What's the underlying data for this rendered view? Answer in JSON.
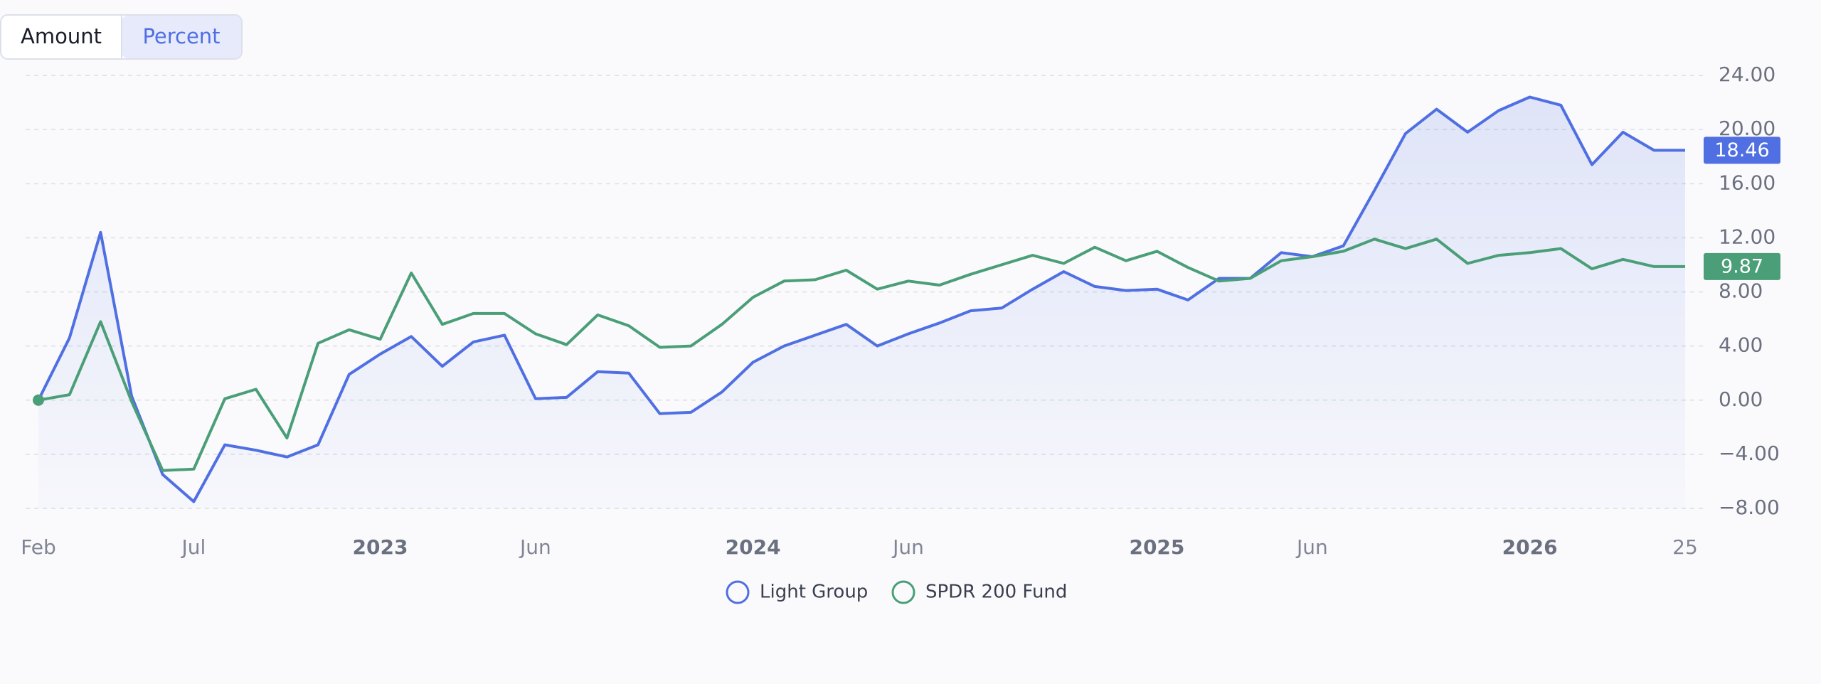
{
  "ui": {
    "buttons": [
      "Amount",
      "Percent"
    ],
    "active_button": 1
  },
  "chart_data": {
    "type": "line",
    "categories": [
      "Feb",
      null,
      null,
      null,
      null,
      "Jul",
      null,
      null,
      null,
      null,
      null,
      "2023",
      null,
      null,
      null,
      null,
      "Jun",
      null,
      null,
      null,
      null,
      null,
      null,
      "2024",
      null,
      null,
      null,
      null,
      "Jun",
      null,
      null,
      null,
      null,
      null,
      null,
      null,
      "2025",
      null,
      null,
      null,
      null,
      "Jun",
      null,
      null,
      null,
      null,
      null,
      null,
      "2026",
      null,
      null,
      null,
      null,
      "25"
    ],
    "series": [
      {
        "name": "Light Group",
        "color": "#4f6fe3",
        "area": true,
        "values": [
          0,
          4.6,
          12.4,
          0.3,
          -5.5,
          -7.5,
          -3.3,
          -3.7,
          -4.2,
          -3.3,
          1.9,
          3.4,
          4.7,
          2.5,
          4.3,
          4.8,
          0.1,
          0.2,
          2.1,
          2.0,
          -1.0,
          -0.9,
          0.6,
          2.8,
          4.0,
          4.8,
          5.6,
          4.0,
          4.9,
          5.7,
          6.6,
          6.8,
          8.2,
          9.5,
          8.4,
          8.1,
          8.2,
          7.4,
          9.0,
          9.0,
          10.9,
          10.6,
          11.4,
          15.5,
          19.7,
          21.5,
          19.8,
          21.4,
          22.4,
          21.8,
          17.4,
          19.8,
          18.46,
          18.46
        ]
      },
      {
        "name": "SPDR 200 Fund",
        "color": "#4a9e78",
        "area": false,
        "values": [
          0,
          0.4,
          5.8,
          -0.1,
          -5.2,
          -5.1,
          0.1,
          0.8,
          -2.8,
          4.2,
          5.2,
          4.5,
          9.4,
          5.6,
          6.4,
          6.4,
          4.9,
          4.1,
          6.3,
          5.5,
          3.9,
          4.0,
          5.6,
          7.6,
          8.8,
          8.9,
          9.6,
          8.2,
          8.8,
          8.5,
          9.3,
          10.0,
          10.7,
          10.1,
          11.3,
          10.3,
          11.0,
          9.8,
          8.8,
          9.0,
          10.3,
          10.6,
          11.0,
          11.9,
          11.2,
          11.9,
          10.1,
          10.7,
          10.9,
          11.2,
          9.7,
          10.4,
          9.87,
          9.87
        ]
      }
    ],
    "ylim": [
      -8,
      24
    ],
    "yticks": [
      {
        "value": -8,
        "label": "−8.00"
      },
      {
        "value": -4,
        "label": "−4.00"
      },
      {
        "value": 0,
        "label": "0.00"
      },
      {
        "value": 4,
        "label": "4.00"
      },
      {
        "value": 8,
        "label": "8.00"
      },
      {
        "value": 12,
        "label": "12.00"
      },
      {
        "value": 16,
        "label": "16.00"
      },
      {
        "value": 20,
        "label": "20.00"
      },
      {
        "value": 24,
        "label": "24.00"
      }
    ],
    "grid": true
  }
}
